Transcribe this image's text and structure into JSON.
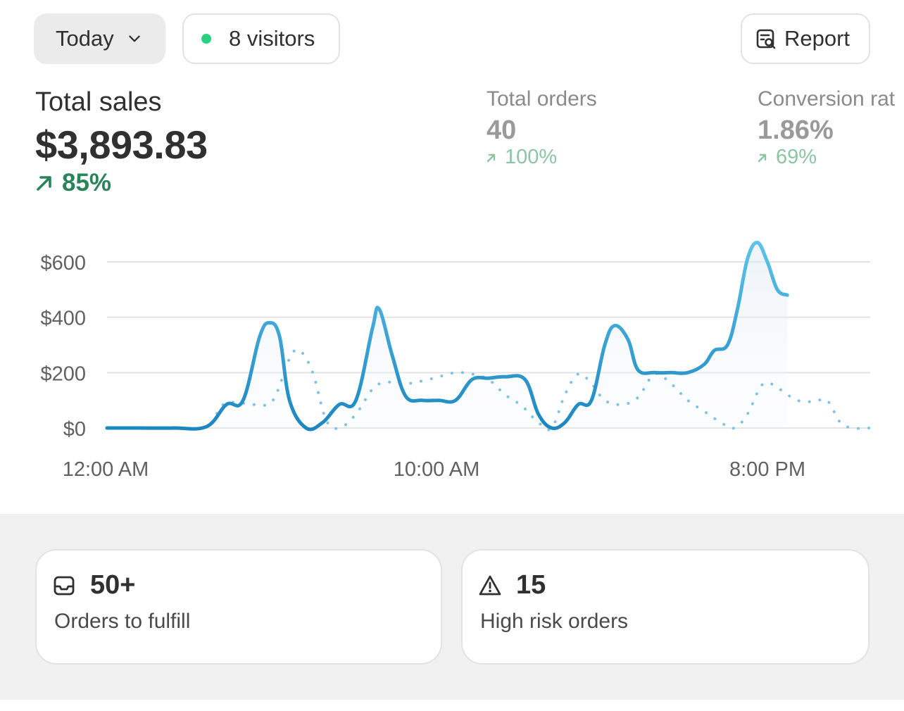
{
  "header": {
    "date_range": "Today",
    "visitors_label": "8 visitors",
    "report_label": "Report",
    "live_dot_color": "#29d17e"
  },
  "metrics": {
    "total_sales": {
      "label": "Total sales",
      "value": "$3,893.83",
      "delta": "85%"
    },
    "total_orders": {
      "label": "Total orders",
      "value": "40",
      "delta": "100%"
    },
    "conversion_rate": {
      "label": "Conversion rat",
      "value": "1.86%",
      "delta": "69%"
    }
  },
  "chart_data": {
    "type": "line",
    "y_ticks": [
      "$600",
      "$400",
      "$200",
      "$0"
    ],
    "x_ticks": [
      "12:00 AM",
      "10:00 AM",
      "8:00 PM"
    ],
    "ylim": [
      0,
      600
    ],
    "x_range_hours": [
      0,
      23
    ],
    "series": [
      {
        "style": "solid",
        "color": "#2a9fd6",
        "points": [
          [
            0,
            0
          ],
          [
            1,
            0
          ],
          [
            2,
            0
          ],
          [
            3,
            5
          ],
          [
            3.6,
            85
          ],
          [
            4.1,
            100
          ],
          [
            4.6,
            330
          ],
          [
            4.9,
            380
          ],
          [
            5.2,
            330
          ],
          [
            5.5,
            100
          ],
          [
            6,
            0
          ],
          [
            6.5,
            20
          ],
          [
            7,
            85
          ],
          [
            7.5,
            100
          ],
          [
            8,
            360
          ],
          [
            8.2,
            430
          ],
          [
            8.6,
            260
          ],
          [
            9,
            115
          ],
          [
            9.5,
            100
          ],
          [
            10,
            100
          ],
          [
            10.5,
            100
          ],
          [
            11,
            175
          ],
          [
            11.5,
            180
          ],
          [
            12,
            185
          ],
          [
            12.6,
            175
          ],
          [
            13,
            50
          ],
          [
            13.4,
            0
          ],
          [
            13.8,
            20
          ],
          [
            14.2,
            85
          ],
          [
            14.6,
            100
          ],
          [
            15,
            300
          ],
          [
            15.3,
            370
          ],
          [
            15.7,
            320
          ],
          [
            16,
            210
          ],
          [
            16.5,
            200
          ],
          [
            17,
            200
          ],
          [
            17.5,
            200
          ],
          [
            18,
            230
          ],
          [
            18.3,
            280
          ],
          [
            18.7,
            300
          ],
          [
            19,
            430
          ],
          [
            19.3,
            610
          ],
          [
            19.6,
            670
          ],
          [
            19.9,
            600
          ],
          [
            20.2,
            500
          ],
          [
            20.5,
            480
          ]
        ]
      },
      {
        "style": "dotted",
        "color": "#7fc3e0",
        "points": [
          [
            0,
            0
          ],
          [
            1,
            0
          ],
          [
            2,
            0
          ],
          [
            3,
            5
          ],
          [
            3.5,
            85
          ],
          [
            4,
            90
          ],
          [
            4.5,
            85
          ],
          [
            5,
            100
          ],
          [
            5.5,
            250
          ],
          [
            5.8,
            280
          ],
          [
            6.2,
            200
          ],
          [
            6.6,
            30
          ],
          [
            7,
            0
          ],
          [
            7.5,
            50
          ],
          [
            8,
            140
          ],
          [
            8.4,
            165
          ],
          [
            9,
            160
          ],
          [
            9.5,
            170
          ],
          [
            10,
            185
          ],
          [
            10.5,
            200
          ],
          [
            11,
            195
          ],
          [
            11.5,
            175
          ],
          [
            12,
            120
          ],
          [
            12.5,
            80
          ],
          [
            13,
            20
          ],
          [
            13.4,
            0
          ],
          [
            13.8,
            120
          ],
          [
            14.2,
            195
          ],
          [
            14.6,
            160
          ],
          [
            15,
            100
          ],
          [
            15.5,
            85
          ],
          [
            16,
            110
          ],
          [
            16.5,
            195
          ],
          [
            17,
            160
          ],
          [
            17.5,
            100
          ],
          [
            18,
            60
          ],
          [
            18.5,
            20
          ],
          [
            18.9,
            0
          ],
          [
            19.3,
            50
          ],
          [
            19.7,
            150
          ],
          [
            20,
            160
          ],
          [
            20.4,
            130
          ],
          [
            20.8,
            100
          ],
          [
            21.3,
            95
          ],
          [
            21.7,
            100
          ],
          [
            22.1,
            20
          ],
          [
            22.5,
            0
          ],
          [
            23,
            0
          ]
        ]
      }
    ]
  },
  "cards": [
    {
      "value": "50+",
      "label": "Orders to fulfill",
      "icon": "inbox-icon"
    },
    {
      "value": "15",
      "label": "High risk orders",
      "icon": "alert-triangle-icon"
    }
  ],
  "colors": {
    "positive": "#29845a",
    "positive_muted": "#8cc4a4",
    "grid": "#e3e3e3",
    "axis_text": "#616161"
  }
}
